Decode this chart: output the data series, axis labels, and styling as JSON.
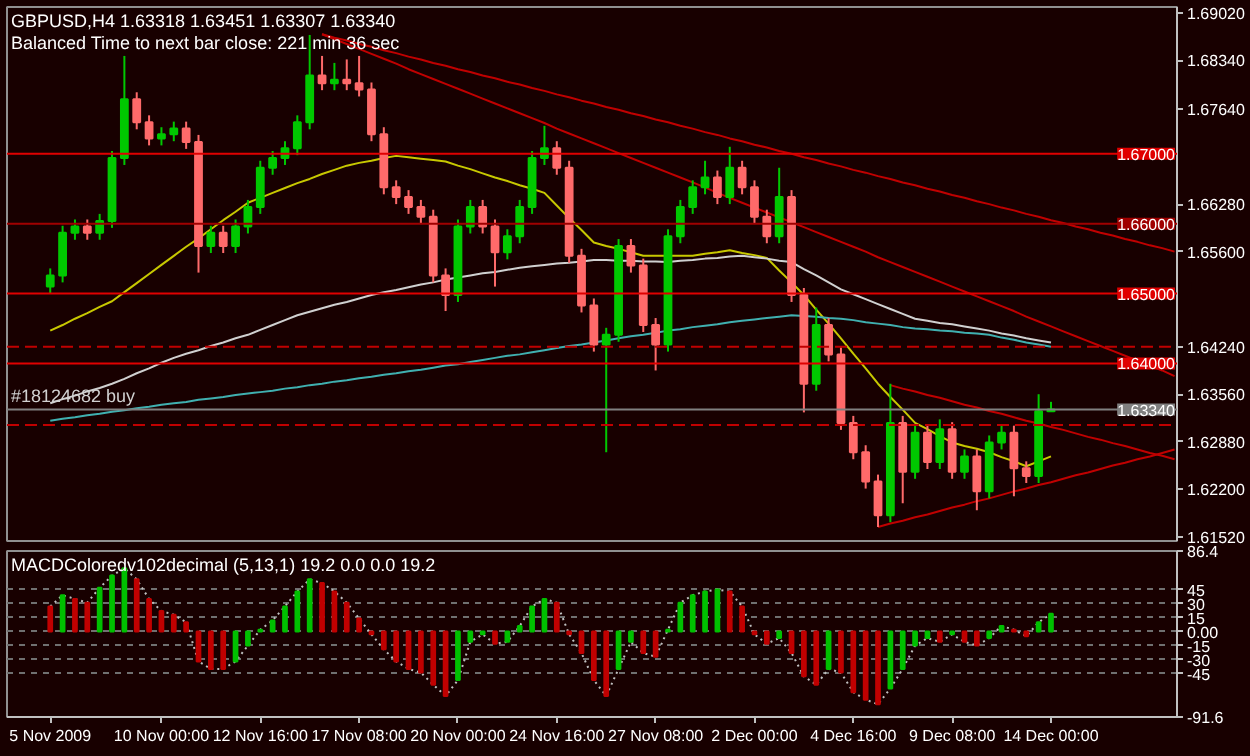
{
  "chart_data": [
    {
      "type": "candlestick",
      "title": "GBPUSD,H4  1.63318 1.63451 1.63307 1.63340",
      "subtitle": "Balanced Time to next bar close: 221 min 36 sec",
      "categories": [
        null,
        null,
        null,
        null,
        null,
        null,
        null,
        null,
        null,
        null,
        null,
        null,
        null,
        null,
        null,
        null,
        null,
        null,
        null,
        null,
        null,
        null,
        null,
        null,
        null,
        null,
        null,
        null,
        null,
        null,
        null,
        null,
        null,
        null,
        null,
        null,
        null,
        null,
        null,
        null,
        null,
        null,
        null,
        null,
        null,
        null,
        null,
        null,
        null,
        null,
        null,
        null,
        null,
        null,
        null,
        null,
        null,
        null,
        null,
        null,
        null,
        null,
        null,
        null,
        null,
        null,
        null,
        null,
        null,
        null,
        null,
        null,
        null,
        null,
        null,
        null,
        null,
        null,
        null,
        null,
        null,
        null,
        null,
        null,
        null,
        null,
        null,
        null,
        null,
        null,
        null,
        null
      ],
      "ohlc": [
        [
          1.651,
          1.6536,
          1.65,
          1.6526
        ],
        [
          1.6526,
          1.6597,
          1.6516,
          1.6587
        ],
        [
          1.6587,
          1.6606,
          1.6577,
          1.6596
        ],
        [
          1.6596,
          1.6606,
          1.6577,
          1.6587
        ],
        [
          1.6587,
          1.6614,
          1.6577,
          1.6604
        ],
        [
          1.6604,
          1.6704,
          1.6594,
          1.6694
        ],
        [
          1.6694,
          1.684,
          1.6684,
          1.6778
        ],
        [
          1.6778,
          1.6788,
          1.6735,
          1.6745
        ],
        [
          1.6745,
          1.6755,
          1.6712,
          1.6722
        ],
        [
          1.6722,
          1.6738,
          1.6712,
          1.6728
        ],
        [
          1.6728,
          1.6746,
          1.6718,
          1.6736
        ],
        [
          1.6736,
          1.6746,
          1.6707,
          1.6717
        ],
        [
          1.6717,
          1.6727,
          1.653,
          1.6568
        ],
        [
          1.6568,
          1.6597,
          1.6558,
          1.6587
        ],
        [
          1.6587,
          1.6597,
          1.6558,
          1.6568
        ],
        [
          1.6568,
          1.6606,
          1.6558,
          1.6596
        ],
        [
          1.6596,
          1.6634,
          1.6586,
          1.6624
        ],
        [
          1.6624,
          1.669,
          1.6614,
          1.668
        ],
        [
          1.668,
          1.6704,
          1.667,
          1.6694
        ],
        [
          1.6694,
          1.6718,
          1.6684,
          1.6708
        ],
        [
          1.6708,
          1.6755,
          1.6698,
          1.6745
        ],
        [
          1.6745,
          1.687,
          1.6735,
          1.6812
        ],
        [
          1.6812,
          1.684,
          1.6791,
          1.6801
        ],
        [
          1.6801,
          1.683,
          1.6791,
          1.6806
        ],
        [
          1.6806,
          1.6835,
          1.6791,
          1.6801
        ],
        [
          1.6801,
          1.684,
          1.6782,
          1.6792
        ],
        [
          1.6792,
          1.6802,
          1.6718,
          1.6728
        ],
        [
          1.6728,
          1.6738,
          1.6642,
          1.6652
        ],
        [
          1.6652,
          1.6662,
          1.6628,
          1.6638
        ],
        [
          1.6638,
          1.6648,
          1.6614,
          1.6624
        ],
        [
          1.6624,
          1.6634,
          1.66,
          1.661
        ],
        [
          1.661,
          1.662,
          1.6516,
          1.6526
        ],
        [
          1.6526,
          1.6536,
          1.6475,
          1.6498
        ],
        [
          1.6498,
          1.6606,
          1.6488,
          1.6596
        ],
        [
          1.6596,
          1.6634,
          1.6586,
          1.6624
        ],
        [
          1.6624,
          1.6634,
          1.6586,
          1.6596
        ],
        [
          1.6596,
          1.6606,
          1.651,
          1.6559
        ],
        [
          1.6559,
          1.6592,
          1.6549,
          1.6582
        ],
        [
          1.6582,
          1.6634,
          1.6572,
          1.6624
        ],
        [
          1.6624,
          1.6704,
          1.6614,
          1.6694
        ],
        [
          1.6694,
          1.674,
          1.6684,
          1.6708
        ],
        [
          1.6708,
          1.6718,
          1.667,
          1.668
        ],
        [
          1.668,
          1.669,
          1.6544,
          1.6554
        ],
        [
          1.6554,
          1.6564,
          1.6473,
          1.6483
        ],
        [
          1.6483,
          1.6493,
          1.6417,
          1.6427
        ],
        [
          1.6427,
          1.6451,
          1.6273,
          1.6441
        ],
        [
          1.6441,
          1.6578,
          1.6431,
          1.6568
        ],
        [
          1.6568,
          1.6578,
          1.653,
          1.654
        ],
        [
          1.654,
          1.655,
          1.6445,
          1.6455
        ],
        [
          1.6455,
          1.6465,
          1.639,
          1.6427
        ],
        [
          1.6427,
          1.6592,
          1.6417,
          1.6582
        ],
        [
          1.6582,
          1.6634,
          1.6572,
          1.6624
        ],
        [
          1.6624,
          1.6662,
          1.6614,
          1.6652
        ],
        [
          1.6652,
          1.669,
          1.6642,
          1.6666
        ],
        [
          1.6666,
          1.6676,
          1.6628,
          1.6638
        ],
        [
          1.6638,
          1.671,
          1.6628,
          1.668
        ],
        [
          1.668,
          1.669,
          1.6642,
          1.6652
        ],
        [
          1.6652,
          1.6662,
          1.66,
          1.661
        ],
        [
          1.661,
          1.662,
          1.6572,
          1.6582
        ],
        [
          1.6582,
          1.668,
          1.6572,
          1.6638
        ],
        [
          1.6638,
          1.6648,
          1.6488,
          1.6498
        ],
        [
          1.6498,
          1.6508,
          1.633,
          1.6371
        ],
        [
          1.6371,
          1.648,
          1.6361,
          1.6455
        ],
        [
          1.6455,
          1.6465,
          1.6403,
          1.6413
        ],
        [
          1.6413,
          1.6423,
          1.6305,
          1.6315
        ],
        [
          1.6315,
          1.6325,
          1.6263,
          1.6273
        ],
        [
          1.6273,
          1.6283,
          1.6221,
          1.6231
        ],
        [
          1.6231,
          1.6241,
          1.6166,
          1.6183
        ],
        [
          1.6183,
          1.6371,
          1.6173,
          1.6315
        ],
        [
          1.6315,
          1.6325,
          1.62,
          1.6245
        ],
        [
          1.6245,
          1.6311,
          1.6235,
          1.6301
        ],
        [
          1.6301,
          1.6311,
          1.6249,
          1.6259
        ],
        [
          1.6259,
          1.632,
          1.6249,
          1.6306
        ],
        [
          1.6306,
          1.6316,
          1.6235,
          1.6245
        ],
        [
          1.6245,
          1.6277,
          1.6235,
          1.6267
        ],
        [
          1.6267,
          1.6277,
          1.619,
          1.6217
        ],
        [
          1.6217,
          1.6297,
          1.6207,
          1.6287
        ],
        [
          1.6287,
          1.6311,
          1.6277,
          1.6301
        ],
        [
          1.6301,
          1.6311,
          1.621,
          1.625
        ],
        [
          1.625,
          1.626,
          1.6229,
          1.6239
        ],
        [
          1.6239,
          1.6356,
          1.6229,
          1.63318
        ],
        [
          1.63318,
          1.63451,
          1.63307,
          1.6334
        ],
        null,
        null,
        null,
        null,
        null,
        null,
        null,
        null,
        null,
        null
      ],
      "colors": [
        "#00c800",
        "#00c800",
        "#00c800",
        "#ff6a6a",
        "#00c800",
        "#00c800",
        "#00c800",
        "#ff6a6a",
        "#ff6a6a",
        "#00c800",
        "#00c800",
        "#ff6a6a",
        "#ff6a6a",
        "#00c800",
        "#ff6a6a",
        "#00c800",
        "#00c800",
        "#00c800",
        "#00c800",
        "#00c800",
        "#00c800",
        "#00c800",
        "#ff6a6a",
        "#00c800",
        "#ff6a6a",
        "#ff6a6a",
        "#ff6a6a",
        "#ff6a6a",
        "#ff6a6a",
        "#ff6a6a",
        "#ff6a6a",
        "#ff6a6a",
        "#ff6a6a",
        "#00c800",
        "#00c800",
        "#ff6a6a",
        "#ff6a6a",
        "#00c800",
        "#00c800",
        "#00c800",
        "#00c800",
        "#ff6a6a",
        "#ff6a6a",
        "#ff6a6a",
        "#ff6a6a",
        "#00c800",
        "#00c800",
        "#ff6a6a",
        "#ff6a6a",
        "#ff6a6a",
        "#00c800",
        "#00c800",
        "#00c800",
        "#00c800",
        "#ff6a6a",
        "#00c800",
        "#ff6a6a",
        "#ff6a6a",
        "#ff6a6a",
        "#00c800",
        "#ff6a6a",
        "#ff6a6a",
        "#00c800",
        "#ff6a6a",
        "#ff6a6a",
        "#ff6a6a",
        "#ff6a6a",
        "#ff6a6a",
        "#00c800",
        "#ff6a6a",
        "#00c800",
        "#ff6a6a",
        "#00c800",
        "#ff6a6a",
        "#00c800",
        "#ff6a6a",
        "#00c800",
        "#00c800",
        "#ff6a6a",
        "#ff6a6a",
        "#00c800",
        "#00c800",
        null,
        null,
        null,
        null,
        null,
        null,
        null,
        null,
        null,
        null
      ],
      "series": [
        {
          "type": "line",
          "color": "#c8c800",
          "values": [
            1.6447,
            1.6455,
            1.6464,
            1.6472,
            1.6481,
            1.6489,
            1.6502,
            1.6515,
            1.6528,
            1.6541,
            1.6554,
            1.6567,
            1.6579,
            1.6592,
            1.6605,
            1.6617,
            1.663,
            1.6637,
            1.6644,
            1.6651,
            1.6658,
            1.6664,
            1.6671,
            1.6677,
            1.6683,
            1.6687,
            1.669,
            1.6694,
            1.6697,
            1.6695,
            1.6693,
            1.6691,
            1.6689,
            1.6683,
            1.6678,
            1.6672,
            1.6666,
            1.6661,
            1.6655,
            1.665,
            1.6644,
            1.6626,
            1.6608,
            1.6591,
            1.6573,
            1.6568,
            1.6564,
            1.6559,
            1.6554,
            1.6554,
            1.6554,
            1.6554,
            1.6554,
            1.6557,
            1.6559,
            1.6562,
            1.6558,
            1.6555,
            1.6551,
            1.6533,
            1.6516,
            1.6498,
            1.6477,
            1.6457,
            1.6436,
            1.6414,
            1.6393,
            1.6371,
            1.6352,
            1.6334,
            1.6315,
            1.6306,
            1.6296,
            1.6287,
            1.6282,
            1.6278,
            1.6273,
            1.6266,
            1.626,
            1.6253,
            1.626,
            1.6267,
            null,
            null,
            null,
            null,
            null,
            null,
            null,
            null,
            null,
            null
          ]
        },
        {
          "type": "line",
          "color": "#d0d0d0",
          "values": [
            1.6343,
            1.6349,
            1.6354,
            1.636,
            1.6365,
            1.6371,
            1.6378,
            1.6386,
            1.6393,
            1.6401,
            1.6408,
            1.6414,
            1.6419,
            1.6425,
            1.643,
            1.6436,
            1.6441,
            1.6448,
            1.6455,
            1.6462,
            1.6469,
            1.6474,
            1.6479,
            1.6484,
            1.6488,
            1.6493,
            1.6498,
            1.6502,
            1.6505,
            1.6509,
            1.6513,
            1.6516,
            1.652,
            1.6523,
            1.6526,
            1.6529,
            1.6531,
            1.6534,
            1.6537,
            1.6539,
            1.6541,
            1.6543,
            1.6544,
            1.6546,
            1.6548,
            1.6548,
            1.6547,
            1.6547,
            1.6546,
            1.6546,
            1.6545,
            1.6547,
            1.6548,
            1.655,
            1.6551,
            1.6553,
            1.6554,
            1.6552,
            1.655,
            1.6547,
            1.6545,
            1.6535,
            1.6526,
            1.6516,
            1.6506,
            1.6499,
            1.6492,
            1.6485,
            1.6478,
            1.6471,
            1.6464,
            1.6461,
            1.6458,
            1.6456,
            1.6453,
            1.645,
            1.6447,
            1.6443,
            1.644,
            1.6436,
            1.6433,
            1.643,
            null,
            null,
            null,
            null,
            null,
            null,
            null,
            null,
            null,
            null
          ]
        },
        {
          "type": "line",
          "color": "#40b0b0",
          "values": [
            1.6318,
            1.6321,
            1.6323,
            1.6326,
            1.6328,
            1.6331,
            1.6333,
            1.6336,
            1.6338,
            1.6341,
            1.6343,
            1.6345,
            1.6348,
            1.635,
            1.6352,
            1.6355,
            1.6357,
            1.6359,
            1.6361,
            1.6364,
            1.6366,
            1.6369,
            1.6371,
            1.6374,
            1.6376,
            1.6379,
            1.6381,
            1.6384,
            1.6386,
            1.6389,
            1.6391,
            1.6394,
            1.6397,
            1.6399,
            1.6402,
            1.6405,
            1.6408,
            1.6411,
            1.6413,
            1.6416,
            1.6419,
            1.6422,
            1.6425,
            1.6427,
            1.643,
            1.6433,
            1.6436,
            1.6439,
            1.6441,
            1.6444,
            1.6447,
            1.6449,
            1.6452,
            1.6454,
            1.6456,
            1.6459,
            1.6461,
            1.6463,
            1.6465,
            1.6467,
            1.6469,
            1.6468,
            1.6467,
            1.6465,
            1.6464,
            1.6462,
            1.6459,
            1.6457,
            1.6455,
            1.6452,
            1.645,
            1.6449,
            1.6447,
            1.6446,
            1.6444,
            1.6443,
            1.6441,
            1.6437,
            1.6434,
            1.643,
            1.6427,
            1.6424,
            null,
            null,
            null,
            null,
            null,
            null,
            null,
            null,
            null,
            null
          ]
        },
        {
          "type": "line",
          "color": "#c00000",
          "values": [
            null,
            null,
            null,
            null,
            null,
            null,
            null,
            null,
            null,
            null,
            null,
            null,
            null,
            null,
            null,
            null,
            null,
            null,
            null,
            null,
            null,
            null,
            1.6871,
            1.6866,
            1.6862,
            1.6857,
            1.6853,
            1.6848,
            1.6844,
            1.6839,
            1.6835,
            1.683,
            1.6826,
            1.6821,
            1.6817,
            1.6812,
            1.6808,
            1.6803,
            1.6799,
            1.6794,
            1.679,
            1.6785,
            1.6781,
            1.6776,
            1.6772,
            1.6767,
            1.6763,
            1.6758,
            1.6754,
            1.6749,
            1.6745,
            1.674,
            1.6736,
            1.6731,
            1.6727,
            1.6722,
            1.6718,
            1.6713,
            1.6709,
            1.6704,
            1.67,
            1.6695,
            1.6691,
            1.6686,
            1.6682,
            1.6677,
            1.6673,
            1.6668,
            1.6664,
            1.6659,
            1.6655,
            1.665,
            1.6646,
            1.6641,
            1.6637,
            1.6632,
            1.6628,
            1.6623,
            1.6619,
            1.6614,
            1.661,
            1.6605,
            1.6601,
            1.6596,
            1.6592,
            1.6587,
            1.6583,
            1.6578,
            1.6574,
            1.6569,
            1.6565,
            1.656
          ]
        },
        {
          "type": "line",
          "color": "#c00000",
          "values": [
            null,
            null,
            null,
            null,
            null,
            null,
            null,
            null,
            null,
            null,
            null,
            null,
            null,
            null,
            null,
            null,
            null,
            null,
            null,
            null,
            null,
            null,
            1.6871,
            1.6864,
            1.6857,
            1.685,
            1.6843,
            1.6836,
            1.6829,
            1.6821,
            1.6814,
            1.6807,
            1.68,
            1.6793,
            1.6786,
            1.6779,
            1.6772,
            1.6765,
            1.6758,
            1.6751,
            1.6744,
            1.6736,
            1.6729,
            1.6722,
            1.6715,
            1.6708,
            1.6701,
            1.6694,
            1.6687,
            1.668,
            1.6673,
            1.6666,
            1.6659,
            1.6652,
            1.6644,
            1.6637,
            1.663,
            1.6623,
            1.6616,
            1.6609,
            1.6602,
            1.6595,
            1.6588,
            1.6581,
            1.6574,
            1.6567,
            1.656,
            1.6552,
            1.6545,
            1.6538,
            1.6531,
            1.6524,
            1.6517,
            1.651,
            1.6503,
            1.6496,
            1.6489,
            1.6482,
            1.6475,
            1.6467,
            1.646,
            1.6453,
            1.6446,
            1.6439,
            1.6432,
            1.6425,
            1.6418,
            1.6411,
            1.6404,
            1.6397,
            1.639,
            1.6382
          ]
        },
        {
          "type": "line",
          "color": "#c00000",
          "values": [
            null,
            null,
            null,
            null,
            null,
            null,
            null,
            null,
            null,
            null,
            null,
            null,
            null,
            null,
            null,
            null,
            null,
            null,
            null,
            null,
            null,
            null,
            null,
            null,
            null,
            null,
            null,
            null,
            null,
            null,
            null,
            null,
            null,
            null,
            null,
            null,
            null,
            null,
            null,
            null,
            null,
            null,
            null,
            null,
            null,
            null,
            null,
            null,
            null,
            null,
            null,
            null,
            null,
            null,
            null,
            null,
            null,
            null,
            null,
            null,
            null,
            null,
            null,
            null,
            null,
            null,
            null,
            null,
            1.6369,
            1.6364,
            1.636,
            1.6355,
            1.6351,
            1.6346,
            1.6341,
            1.6337,
            1.6332,
            1.6328,
            1.6323,
            1.6318,
            1.6314,
            1.6309,
            1.6305,
            1.63,
            1.6295,
            1.6291,
            1.6286,
            1.6282,
            1.6277,
            1.6272,
            1.6268,
            1.6263
          ]
        },
        {
          "type": "line",
          "color": "#c00000",
          "values": [
            null,
            null,
            null,
            null,
            null,
            null,
            null,
            null,
            null,
            null,
            null,
            null,
            null,
            null,
            null,
            null,
            null,
            null,
            null,
            null,
            null,
            null,
            null,
            null,
            null,
            null,
            null,
            null,
            null,
            null,
            null,
            null,
            null,
            null,
            null,
            null,
            null,
            null,
            null,
            null,
            null,
            null,
            null,
            null,
            null,
            null,
            null,
            null,
            null,
            null,
            null,
            null,
            null,
            null,
            null,
            null,
            null,
            null,
            null,
            null,
            null,
            null,
            null,
            null,
            null,
            null,
            null,
            1.6166,
            1.6171,
            1.6175,
            1.618,
            1.6184,
            1.6189,
            1.6194,
            1.6198,
            1.6203,
            1.6207,
            1.6212,
            1.6217,
            1.6221,
            1.6226,
            1.623,
            1.6235,
            1.624,
            1.6244,
            1.6249,
            1.6254,
            1.6258,
            1.6263,
            1.6267,
            1.6272,
            1.6277
          ]
        }
      ],
      "ylim": [
        1.6146,
        1.691
      ],
      "yticks": [
        {
          "value": 1.6902,
          "label": "1.69020"
        },
        {
          "value": 1.6834,
          "label": "1.68340"
        },
        {
          "value": 1.6764,
          "label": "1.67640"
        },
        {
          "value": 1.6628,
          "label": "1.66280"
        },
        {
          "value": 1.656,
          "label": "1.65600"
        },
        {
          "value": 1.6424,
          "label": "1.64240"
        },
        {
          "value": 1.6356,
          "label": "1.63560"
        },
        {
          "value": 1.6288,
          "label": "1.62880"
        },
        {
          "value": 1.622,
          "label": "1.62200"
        },
        {
          "value": 1.6152,
          "label": "1.61520"
        }
      ],
      "tick_labels": "y",
      "grid": false,
      "ref_lines": [
        {
          "axis": "y",
          "value": 1.67,
          "label": "1.67000",
          "color": "#e00000"
        },
        {
          "axis": "y",
          "value": 1.66,
          "label": "1.66000",
          "color": "#a00000"
        },
        {
          "axis": "y",
          "value": 1.65,
          "label": "1.65000",
          "color": "#e00000"
        },
        {
          "axis": "y",
          "value": 1.64,
          "label": "1.64000",
          "color": "#e00000"
        },
        {
          "axis": "y",
          "value": 1.6424,
          "color": "#c00000",
          "line_style": "dashed"
        },
        {
          "axis": "y",
          "value": 1.6312,
          "color": "#c00000",
          "line_style": "dashed"
        },
        {
          "axis": "y",
          "value": 1.6334,
          "label": "1.63340",
          "color": "#808080"
        }
      ],
      "annotations": [
        {
          "text": "#18124682 buy",
          "y": 1.6334
        }
      ]
    },
    {
      "type": "bar",
      "title": "MACDColoredv102decimal (5,13,1) 19.2 0.0 0.0 19.2",
      "categories": [
        "5 Nov 2009",
        null,
        null,
        null,
        null,
        null,
        null,
        null,
        null,
        "10 Nov 00:00",
        null,
        null,
        null,
        null,
        null,
        null,
        null,
        "12 Nov 16:00",
        null,
        null,
        null,
        null,
        null,
        null,
        null,
        "17 Nov 08:00",
        null,
        null,
        null,
        null,
        null,
        null,
        null,
        "20 Nov 00:00",
        null,
        null,
        null,
        null,
        null,
        null,
        null,
        "24 Nov 16:00",
        null,
        null,
        null,
        null,
        null,
        null,
        null,
        "27 Nov 08:00",
        null,
        null,
        null,
        null,
        null,
        null,
        null,
        "2 Dec 00:00",
        null,
        null,
        null,
        null,
        null,
        null,
        null,
        "4 Dec 16:00",
        null,
        null,
        null,
        null,
        null,
        null,
        null,
        "9 Dec 08:00",
        null,
        null,
        null,
        null,
        null,
        null,
        null,
        "14 Dec 00:00",
        null,
        null,
        null,
        null,
        null,
        null,
        null,
        null,
        null,
        null
      ],
      "values": [
        27,
        39,
        35,
        31,
        47,
        60,
        68,
        56,
        35,
        22,
        18,
        10,
        -32,
        -40,
        -40,
        -32,
        -15,
        2,
        12,
        27,
        43,
        56,
        52,
        43,
        31,
        14,
        -3,
        -19,
        -32,
        -40,
        -44,
        -57,
        -69,
        -52,
        -11,
        -3,
        -13,
        -11,
        6,
        27,
        35,
        31,
        -3,
        -23,
        -52,
        -69,
        -40,
        -11,
        -23,
        -27,
        2,
        31,
        39,
        43,
        45,
        43,
        27,
        -3,
        -13,
        -7,
        -23,
        -48,
        -57,
        -40,
        -44,
        -65,
        -73,
        -78,
        -61,
        -40,
        -15,
        -7,
        -11,
        -3,
        -11,
        -15,
        -7,
        6,
        2,
        -5,
        10,
        19,
        null,
        null,
        null,
        null,
        null,
        null,
        null,
        null,
        null,
        null
      ],
      "colors": [
        "#c00000",
        "#00c000",
        "#c00000",
        "#c00000",
        "#00c000",
        "#00c000",
        "#00c000",
        "#c00000",
        "#c00000",
        "#c00000",
        "#c00000",
        "#c00000",
        "#c00000",
        "#c00000",
        "#c00000",
        "#00c000",
        "#00c000",
        "#00c000",
        "#00c000",
        "#00c000",
        "#00c000",
        "#00c000",
        "#c00000",
        "#c00000",
        "#c00000",
        "#c00000",
        "#c00000",
        "#c00000",
        "#c00000",
        "#c00000",
        "#c00000",
        "#c00000",
        "#c00000",
        "#00c000",
        "#00c000",
        "#00c000",
        "#c00000",
        "#00c000",
        "#00c000",
        "#00c000",
        "#00c000",
        "#c00000",
        "#c00000",
        "#c00000",
        "#c00000",
        "#c00000",
        "#00c000",
        "#00c000",
        "#c00000",
        "#c00000",
        "#00c000",
        "#00c000",
        "#00c000",
        "#00c000",
        "#00c000",
        "#c00000",
        "#c00000",
        "#c00000",
        "#c00000",
        "#00c000",
        "#c00000",
        "#c00000",
        "#c00000",
        "#00c000",
        "#c00000",
        "#c00000",
        "#c00000",
        "#c00000",
        "#00c000",
        "#00c000",
        "#00c000",
        "#00c000",
        "#c00000",
        "#00c000",
        "#c00000",
        "#c00000",
        "#00c000",
        "#00c000",
        "#c00000",
        "#c00000",
        "#00c000",
        "#00c000",
        null,
        null,
        null,
        null,
        null,
        null,
        null,
        null,
        null,
        null
      ],
      "series": [
        {
          "type": "line",
          "color": "#c0c0c0",
          "line_style": "dotted",
          "values": [
            27,
            39,
            35,
            31,
            47,
            60,
            68,
            56,
            35,
            22,
            18,
            10,
            -32,
            -40,
            -40,
            -32,
            -15,
            2,
            12,
            27,
            43,
            56,
            52,
            43,
            31,
            14,
            -3,
            -19,
            -32,
            -40,
            -44,
            -57,
            -69,
            -52,
            -11,
            -3,
            -13,
            -11,
            6,
            27,
            35,
            31,
            -3,
            -23,
            -52,
            -69,
            -40,
            -11,
            -23,
            -27,
            2,
            31,
            39,
            43,
            45,
            43,
            27,
            -3,
            -13,
            -7,
            -23,
            -48,
            -57,
            -40,
            -44,
            -65,
            -73,
            -78,
            -61,
            -40,
            -15,
            -7,
            -11,
            -3,
            -11,
            -15,
            -7,
            6,
            2,
            -5,
            10,
            19,
            null,
            null,
            null,
            null,
            null,
            null,
            null,
            null,
            null,
            null
          ]
        }
      ],
      "ylim": [
        -91.6,
        86.4
      ],
      "yticks": [
        86.4,
        45,
        30,
        15,
        {
          "value": 0,
          "label": "0.00"
        },
        -15,
        -30,
        -45,
        -91.6
      ],
      "grid": "y"
    }
  ]
}
